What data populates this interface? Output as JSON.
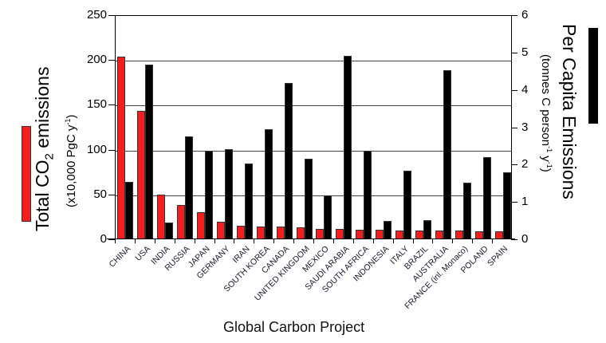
{
  "chart_data": {
    "type": "bar",
    "title": "",
    "footer": "Global Carbon Project",
    "categories": [
      "CHINA",
      "USA",
      "INDIA",
      "RUSSIA",
      "JAPAN",
      "GERMANY",
      "IRAN",
      "SOUTH KOREA",
      "CANADA",
      "UNITED KINGDOM",
      "MEXICO",
      "SAUDI ARABIA",
      "SOUTH AFRICA",
      "INDONESIA",
      "ITALY",
      "BRAZIL",
      "AUSTRALIA",
      "FRANCE (inl. Monaco)",
      "POLAND",
      "SPAIN"
    ],
    "series": [
      {
        "name": "Total CO2 emissions (x10,000 PgC y-1)",
        "axis": "left",
        "color": "#f41e1e",
        "values": [
          204,
          143,
          50,
          38,
          30,
          20,
          15,
          14,
          14,
          13,
          12,
          12,
          11,
          11,
          10,
          10,
          10,
          10,
          9,
          9
        ]
      },
      {
        "name": "Per Capita Emissions (tonnes C person-1 y-1)",
        "axis": "right",
        "color": "#000000",
        "values": [
          1.54,
          4.68,
          0.45,
          2.75,
          2.38,
          2.41,
          2.03,
          2.95,
          4.18,
          2.16,
          1.18,
          4.91,
          2.38,
          0.49,
          1.84,
          0.51,
          4.52,
          1.52,
          2.2,
          1.79
        ]
      }
    ],
    "ylabel_left": "Total CO2 emissions",
    "ylabel_left_sub": "(x10,000 PgC y-1)",
    "ylabel_right": "Per Capita Emissions",
    "ylabel_right_sub": "(tonnes C person-1 y-1)",
    "ylim_left": [
      0,
      250
    ],
    "ylim_right": [
      0,
      6
    ],
    "yticks_left": [
      0,
      50,
      100,
      150,
      200,
      250
    ],
    "yticks_right": [
      0,
      1,
      2,
      3,
      4,
      5,
      6
    ],
    "grid": true
  },
  "labels": {
    "left_main": "Total CO",
    "left_sub2": "2",
    "left_tail": " emissions",
    "left_unit": "(x10,000 PgC y",
    "left_unit_sup": "-1",
    "left_unit_end": ")",
    "right_main": "Per Capita Emissions",
    "right_unit_a": "(tonnes C person",
    "right_unit_sup1": "-1",
    "right_unit_b": " y",
    "right_unit_sup2": "-1",
    "right_unit_end": ")",
    "footer": "Global Carbon Project"
  }
}
